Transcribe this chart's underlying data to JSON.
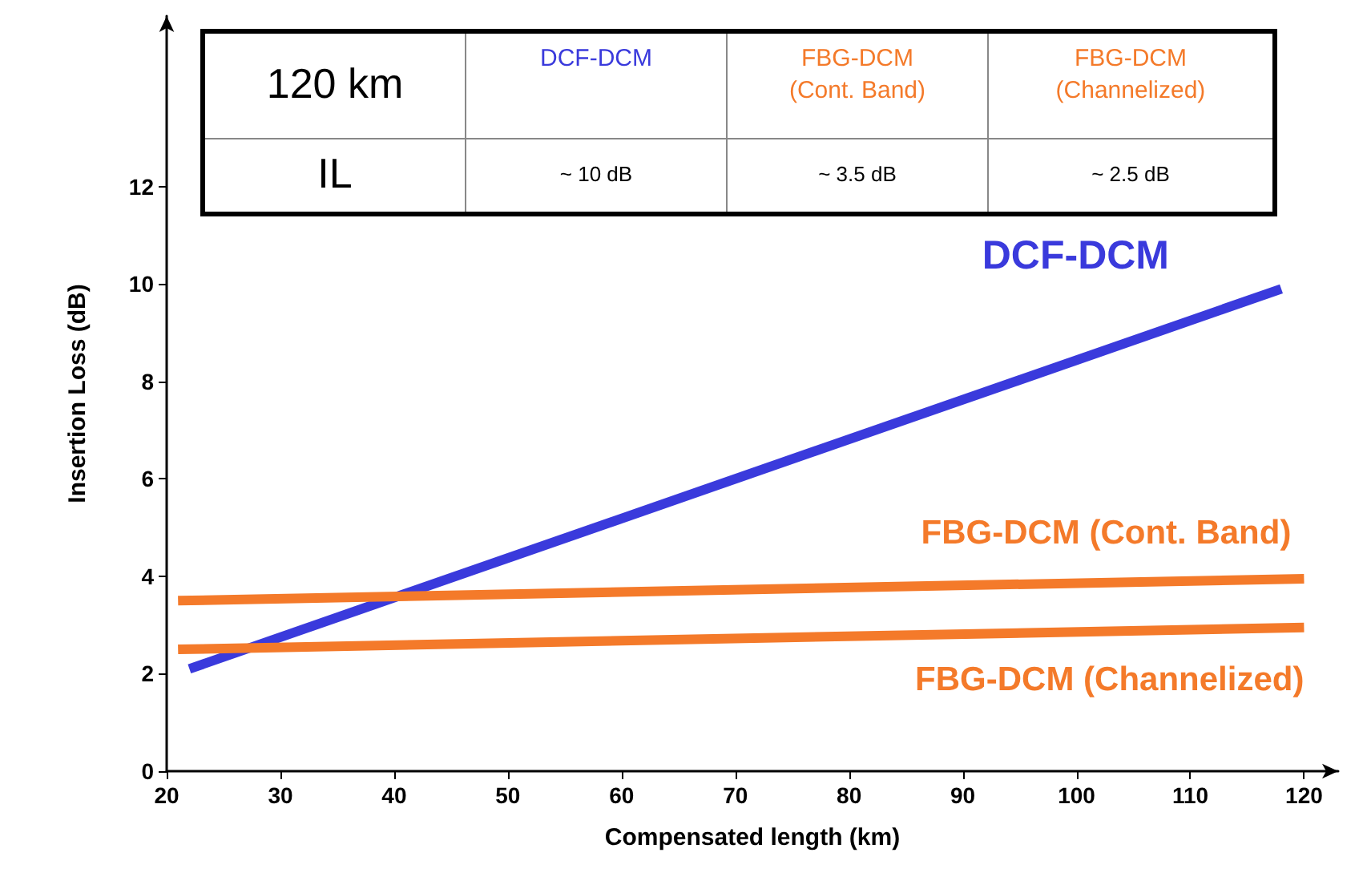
{
  "chart_data": {
    "type": "line",
    "xlabel": "Compensated length (km)",
    "ylabel": "Insertion Loss (dB)",
    "xlim": [
      20,
      123
    ],
    "xticks": [
      20,
      30,
      40,
      50,
      60,
      70,
      80,
      90,
      100,
      110,
      120
    ],
    "ylim": [
      0,
      15.5
    ],
    "yticks": [
      0,
      2,
      4,
      6,
      8,
      10,
      12
    ],
    "grid": false,
    "legend": false,
    "marker": "none",
    "line_style": "solid",
    "series": [
      {
        "name": "DCF-DCM",
        "color": "#3a3adc",
        "x": [
          22,
          118
        ],
        "values": [
          2.1,
          9.9
        ]
      },
      {
        "name": "FBG-DCM (Cont. Band)",
        "color": "#f47a2a",
        "x": [
          21,
          120
        ],
        "values": [
          3.5,
          3.95
        ]
      },
      {
        "name": "FBG-DCM (Channelized)",
        "color": "#f47a2a",
        "x": [
          21,
          120
        ],
        "values": [
          2.5,
          2.95
        ]
      }
    ],
    "annotations": [
      "120 km",
      "DCF-DCM",
      "FBG-DCM\n(Cont. Band)",
      "FBG-DCM\n(Channelized)",
      "IL",
      "~ 10 dB",
      "~ 3.5 dB",
      "~ 2.5 dB"
    ]
  }
}
